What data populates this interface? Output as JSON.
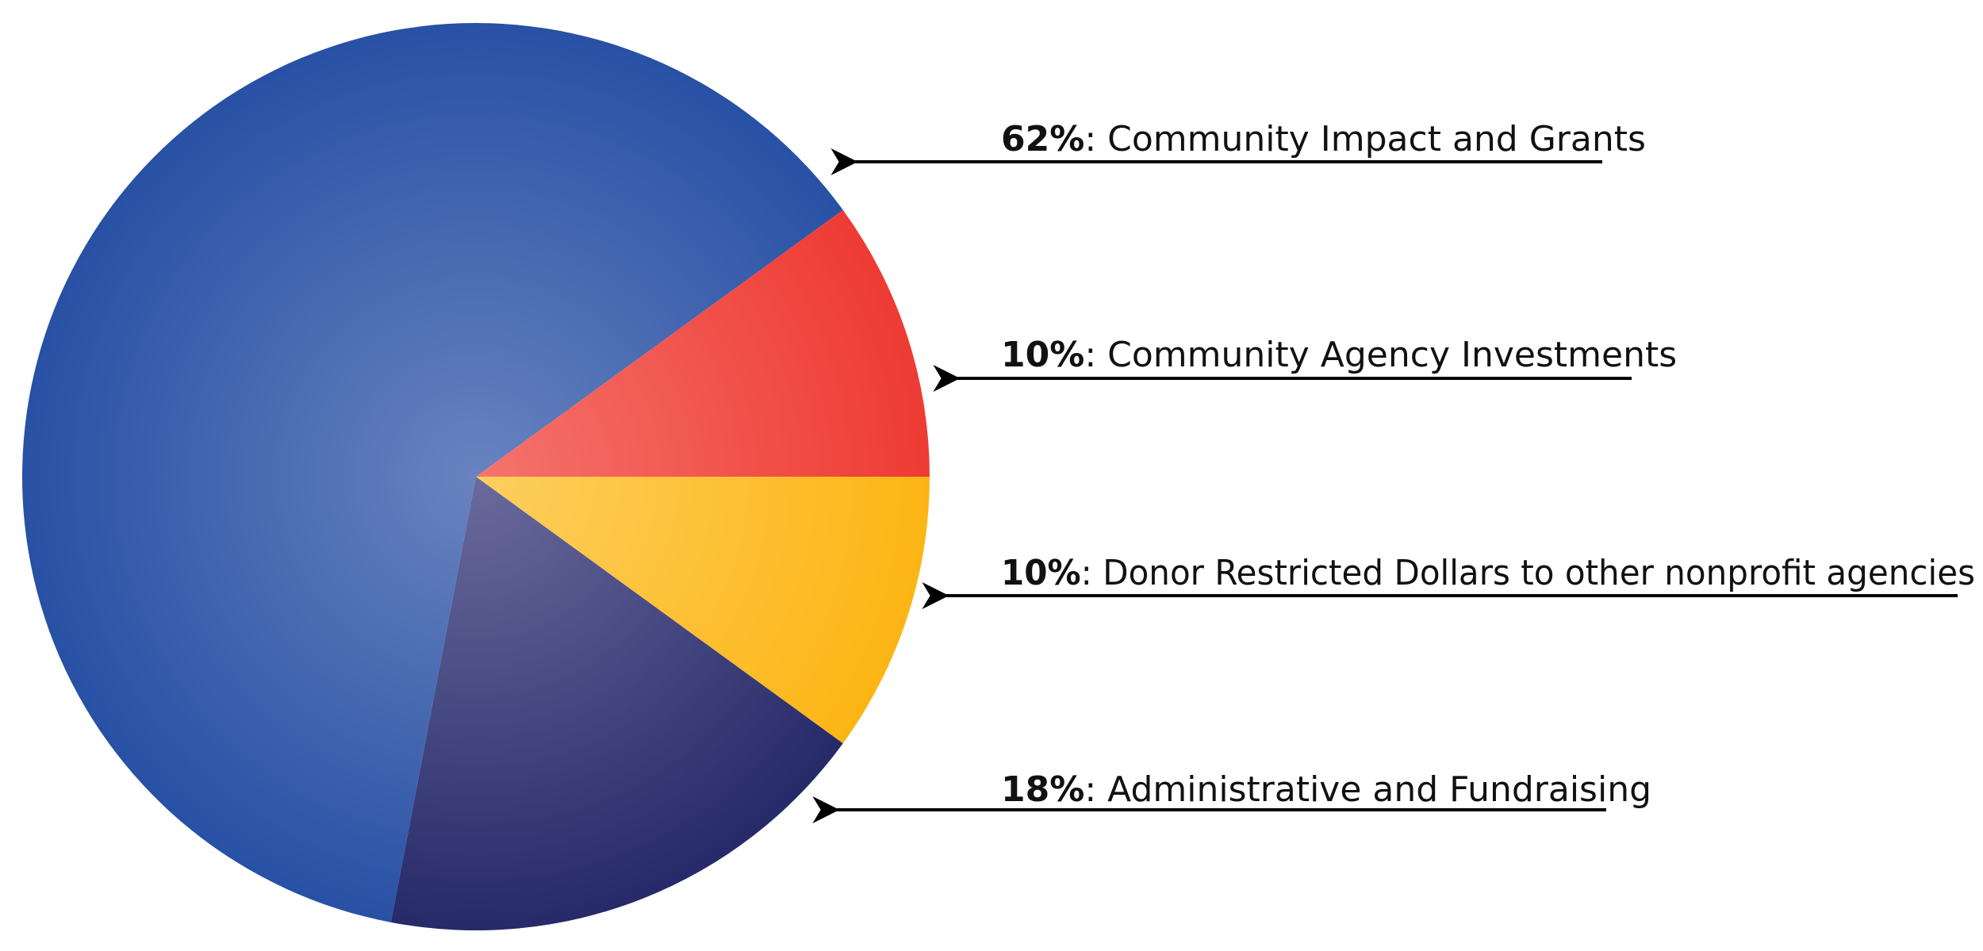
{
  "chart_data": {
    "type": "pie",
    "slices": [
      {
        "label": "Community Impact and Grants",
        "value": 62,
        "percent_label": "62%",
        "color": "#2851a5",
        "center_color": "#6883bf"
      },
      {
        "label": "Community Agency Investments",
        "value": 10,
        "percent_label": "10%",
        "color": "#ee3b33",
        "center_color": "#f4746d"
      },
      {
        "label": "Donor Restricted Dollars to other nonprofit agencies",
        "value": 10,
        "percent_label": "10%",
        "color": "#fdb515",
        "center_color": "#fdcf5e"
      },
      {
        "label": "Administrative and Fundraising",
        "value": 18,
        "percent_label": "18%",
        "color": "#272a69",
        "center_color": "#6a6a9c"
      }
    ],
    "legend_placement": "right",
    "separator": ": "
  }
}
